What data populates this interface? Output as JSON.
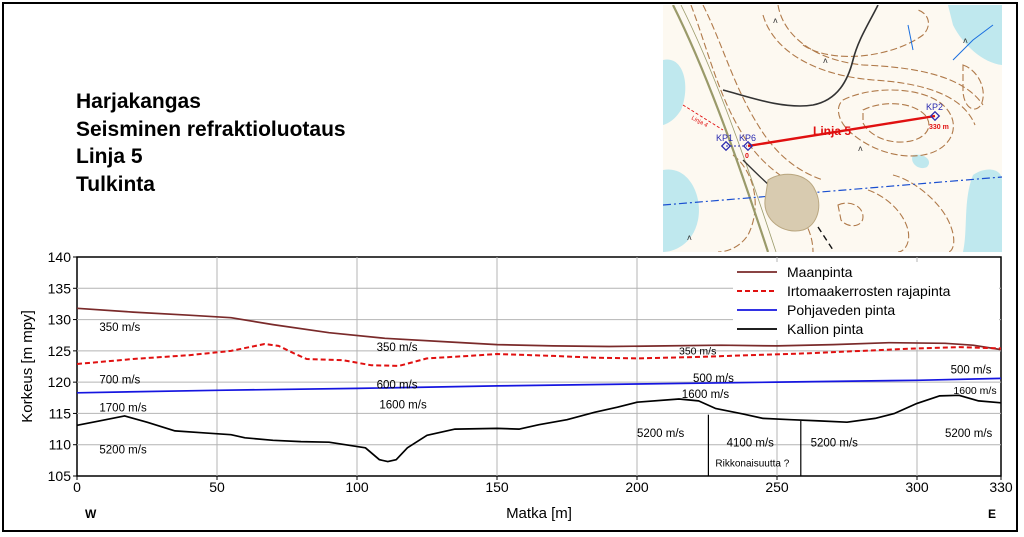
{
  "header": {
    "lines": [
      "Harjakangas",
      "Seisminen refraktioluotaus",
      "Linja 5",
      "Tulkinta"
    ]
  },
  "map": {
    "labels": {
      "kp1": "KP1",
      "kp6": "KP6",
      "kp2": "KP2",
      "line": "Linja 5",
      "start": "0",
      "end": "330 m",
      "other_line": "Linja 4"
    },
    "colors": {
      "route": "#e01010",
      "point": "#2b2bb0",
      "contour": "#b07a4a",
      "water": "#bfe8ee"
    }
  },
  "chart_data": {
    "type": "line",
    "xlabel": "Matka [m]",
    "ylabel": "Korkeus [m mpy]",
    "xlim": [
      0,
      330
    ],
    "ylim": [
      105,
      140
    ],
    "x_ticks": [
      0,
      50,
      100,
      150,
      200,
      250,
      300,
      330
    ],
    "y_ticks": [
      105,
      110,
      115,
      120,
      125,
      130,
      135,
      140
    ],
    "grid": true,
    "legend_position": "top-right",
    "direction_labels": {
      "left": "W",
      "right": "E"
    },
    "series": [
      {
        "name": "Maanpinta",
        "color": "#7a2a2a",
        "dash": "solid",
        "points": [
          [
            0,
            131.8
          ],
          [
            20,
            131.2
          ],
          [
            40,
            130.7
          ],
          [
            55,
            130.3
          ],
          [
            70,
            129.2
          ],
          [
            90,
            127.9
          ],
          [
            110,
            127.0
          ],
          [
            130,
            126.5
          ],
          [
            150,
            126.0
          ],
          [
            170,
            125.8
          ],
          [
            190,
            125.7
          ],
          [
            210,
            125.8
          ],
          [
            230,
            125.9
          ],
          [
            250,
            125.8
          ],
          [
            270,
            126.0
          ],
          [
            290,
            126.3
          ],
          [
            310,
            126.2
          ],
          [
            320,
            125.9
          ],
          [
            330,
            125.2
          ]
        ]
      },
      {
        "name": "Irtomaakerrosten rajapinta",
        "color": "#e01010",
        "dash": "dashed",
        "points": [
          [
            0,
            122.9
          ],
          [
            20,
            123.7
          ],
          [
            40,
            124.3
          ],
          [
            55,
            125.0
          ],
          [
            67,
            126.1
          ],
          [
            72,
            125.8
          ],
          [
            78,
            124.5
          ],
          [
            82,
            123.7
          ],
          [
            95,
            123.5
          ],
          [
            105,
            122.7
          ],
          [
            115,
            122.6
          ],
          [
            125,
            123.8
          ],
          [
            140,
            124.2
          ],
          [
            150,
            124.5
          ],
          [
            170,
            124.2
          ],
          [
            185,
            123.9
          ],
          [
            200,
            123.8
          ],
          [
            220,
            124.0
          ],
          [
            240,
            124.3
          ],
          [
            260,
            124.6
          ],
          [
            280,
            125.0
          ],
          [
            300,
            125.4
          ],
          [
            315,
            125.6
          ],
          [
            330,
            125.4
          ]
        ]
      },
      {
        "name": "Pohjaveden pinta",
        "color": "#1515e0",
        "dash": "solid",
        "points": [
          [
            0,
            118.3
          ],
          [
            50,
            118.7
          ],
          [
            100,
            119.0
          ],
          [
            150,
            119.4
          ],
          [
            200,
            119.7
          ],
          [
            250,
            120.0
          ],
          [
            300,
            120.3
          ],
          [
            330,
            120.6
          ]
        ]
      },
      {
        "name": "Kallion pinta",
        "color": "#000000",
        "dash": "solid",
        "points": [
          [
            0,
            113.1
          ],
          [
            8,
            113.8
          ],
          [
            17,
            114.6
          ],
          [
            25,
            113.6
          ],
          [
            35,
            112.2
          ],
          [
            45,
            111.9
          ],
          [
            55,
            111.6
          ],
          [
            60,
            111.1
          ],
          [
            70,
            110.7
          ],
          [
            80,
            110.5
          ],
          [
            90,
            110.4
          ],
          [
            103,
            109.5
          ],
          [
            108,
            107.6
          ],
          [
            111,
            107.3
          ],
          [
            114,
            107.6
          ],
          [
            118,
            109.5
          ],
          [
            125,
            111.5
          ],
          [
            135,
            112.5
          ],
          [
            150,
            112.6
          ],
          [
            158,
            112.5
          ],
          [
            165,
            113.2
          ],
          [
            175,
            114.0
          ],
          [
            185,
            115.2
          ],
          [
            193,
            116.0
          ],
          [
            200,
            116.8
          ],
          [
            215,
            117.3
          ],
          [
            222,
            117.0
          ],
          [
            228,
            115.8
          ],
          [
            238,
            114.9
          ],
          [
            245,
            114.2
          ],
          [
            255,
            114.0
          ],
          [
            265,
            113.8
          ],
          [
            275,
            113.6
          ],
          [
            285,
            114.2
          ],
          [
            292,
            115.0
          ],
          [
            300,
            116.6
          ],
          [
            308,
            117.8
          ],
          [
            315,
            117.9
          ],
          [
            322,
            117.0
          ],
          [
            330,
            116.7
          ]
        ]
      }
    ],
    "annotations": [
      {
        "text": "350 m/s",
        "x": 8,
        "y": 128.2,
        "size": 11.5
      },
      {
        "text": "350 m/s",
        "x": 107,
        "y": 125.0,
        "size": 11.5
      },
      {
        "text": "350 m/s",
        "x": 215,
        "y": 124.4,
        "size": 10.5
      },
      {
        "text": "700 m/s",
        "x": 8,
        "y": 119.8,
        "size": 11.5
      },
      {
        "text": "600 m/s",
        "x": 107,
        "y": 119.0,
        "size": 11.5
      },
      {
        "text": "500 m/s",
        "x": 220,
        "y": 120.0,
        "size": 11.5
      },
      {
        "text": "500 m/s",
        "x": 312,
        "y": 121.4,
        "size": 11.5
      },
      {
        "text": "1700 m/s",
        "x": 8,
        "y": 115.3,
        "size": 11.5
      },
      {
        "text": "1600 m/s",
        "x": 108,
        "y": 115.8,
        "size": 11.5
      },
      {
        "text": "1600 m/s",
        "x": 216,
        "y": 117.5,
        "size": 11.5
      },
      {
        "text": "1600 m/s",
        "x": 313,
        "y": 118.1,
        "size": 10.5
      },
      {
        "text": "5200 m/s",
        "x": 8,
        "y": 108.6,
        "size": 11.5
      },
      {
        "text": "5200 m/s",
        "x": 200,
        "y": 111.2,
        "size": 11.5
      },
      {
        "text": "4100 m/s",
        "x": 232,
        "y": 109.7,
        "size": 11.5
      },
      {
        "text": "5200 m/s",
        "x": 262,
        "y": 109.7,
        "size": 11.5
      },
      {
        "text": "5200 m/s",
        "x": 310,
        "y": 111.2,
        "size": 11.5
      },
      {
        "text": "Rikkonaisuutta ?",
        "x": 228,
        "y": 106.5,
        "size": 10
      }
    ],
    "faults": [
      {
        "x": 225.5,
        "from": 105,
        "to": 114.8
      },
      {
        "x": 258.5,
        "from": 105,
        "to": 113.8
      }
    ]
  }
}
